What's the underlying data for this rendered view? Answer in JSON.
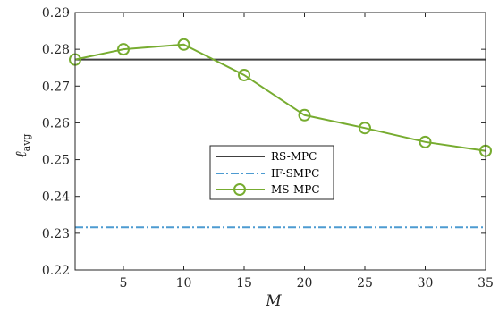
{
  "chart_data": {
    "type": "line",
    "title": "",
    "xlabel": "M",
    "ylabel": "ℓ",
    "ylabel_subscript": "avg",
    "xlim": [
      1,
      35
    ],
    "ylim": [
      0.22,
      0.29
    ],
    "x_ticks": [
      5,
      10,
      15,
      20,
      25,
      30,
      35
    ],
    "y_ticks": [
      0.22,
      0.23,
      0.24,
      0.25,
      0.26,
      0.27,
      0.28,
      0.29
    ],
    "y_tick_labels": [
      "0.22",
      "0.23",
      "0.24",
      "0.25",
      "0.26",
      "0.27",
      "0.28",
      "0.29"
    ],
    "grid": false,
    "legend_position": "center",
    "series": [
      {
        "name": "RS-MPC",
        "style": "solid",
        "color": "#404040",
        "x": [
          1,
          35
        ],
        "y": [
          0.2772,
          0.2772
        ]
      },
      {
        "name": "IF-SMPC",
        "style": "dashdot",
        "color": "#4d9bd1",
        "x": [
          1,
          35
        ],
        "y": [
          0.2316,
          0.2316
        ]
      },
      {
        "name": "MS-MPC",
        "style": "solid-circle",
        "color": "#77ac30",
        "x": [
          1,
          5,
          10,
          15,
          20,
          25,
          30,
          35
        ],
        "y": [
          0.2772,
          0.28,
          0.2813,
          0.273,
          0.2621,
          0.2586,
          0.2548,
          0.2524
        ]
      }
    ]
  }
}
